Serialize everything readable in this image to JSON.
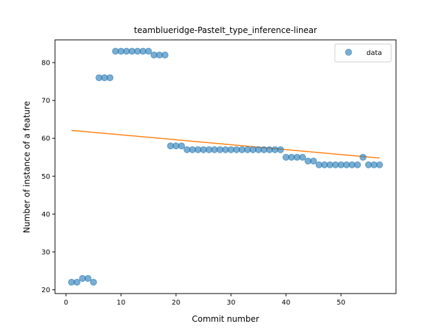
{
  "chart_data": {
    "type": "scatter",
    "title": "teamblueridge-PasteIt_type_inference-linear",
    "xlabel": "Commit number",
    "ylabel": "Number of instance of a feature",
    "xlim": [
      -2,
      60
    ],
    "ylim": [
      19,
      86
    ],
    "xticks": [
      0,
      10,
      20,
      30,
      40,
      50
    ],
    "yticks": [
      20,
      30,
      40,
      50,
      60,
      70,
      80
    ],
    "grid": false,
    "legend_position": "top-right",
    "series": [
      {
        "name": "data",
        "kind": "scatter",
        "color": "#1f77b4",
        "x": [
          1,
          2,
          3,
          4,
          5,
          6,
          7,
          8,
          9,
          10,
          11,
          12,
          13,
          14,
          15,
          16,
          17,
          18,
          19,
          20,
          21,
          22,
          23,
          24,
          25,
          26,
          27,
          28,
          29,
          30,
          31,
          32,
          33,
          34,
          35,
          36,
          37,
          38,
          39,
          40,
          41,
          42,
          43,
          44,
          45,
          46,
          47,
          48,
          49,
          50,
          51,
          52,
          53,
          54,
          55,
          56,
          57
        ],
        "y": [
          22,
          22,
          23,
          23,
          22,
          76,
          76,
          76,
          83,
          83,
          83,
          83,
          83,
          83,
          83,
          82,
          82,
          82,
          58,
          58,
          58,
          57,
          57,
          57,
          57,
          57,
          57,
          57,
          57,
          57,
          57,
          57,
          57,
          57,
          57,
          57,
          57,
          57,
          57,
          55,
          55,
          55,
          55,
          54,
          54,
          53,
          53,
          53,
          53,
          53,
          53,
          53,
          53,
          55,
          53,
          53,
          53
        ]
      },
      {
        "kind": "line",
        "color": "#ff7f0e",
        "x": [
          1,
          57
        ],
        "y": [
          62.1,
          54.8
        ]
      }
    ]
  }
}
